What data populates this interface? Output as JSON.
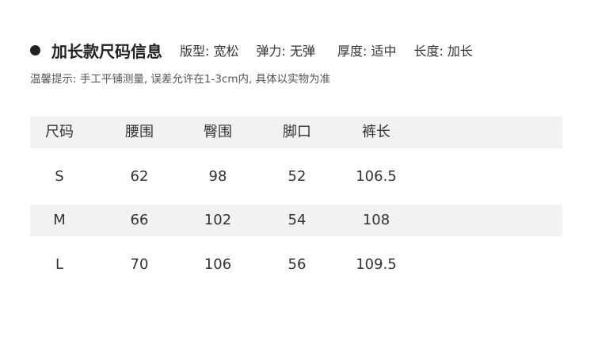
{
  "heading": {
    "title": "加长款尺码信息",
    "attributes": [
      "版型: 宽松",
      "弹力: 无弹",
      "厚度: 适中",
      "长度: 加长"
    ]
  },
  "tip": "温馨提示: 手工平铺测量, 误差允许在1-3cm内, 具体以实物为准",
  "table": {
    "headers": [
      "尺码",
      "腰围",
      "臀围",
      "脚口",
      "裤长"
    ],
    "rows": [
      [
        "S",
        "62",
        "98",
        "52",
        "106.5"
      ],
      [
        "M",
        "66",
        "102",
        "54",
        "108"
      ],
      [
        "L",
        "70",
        "106",
        "56",
        "109.5"
      ]
    ]
  },
  "colors": {
    "stripe": "#f2f2f2",
    "text": "#333333"
  }
}
